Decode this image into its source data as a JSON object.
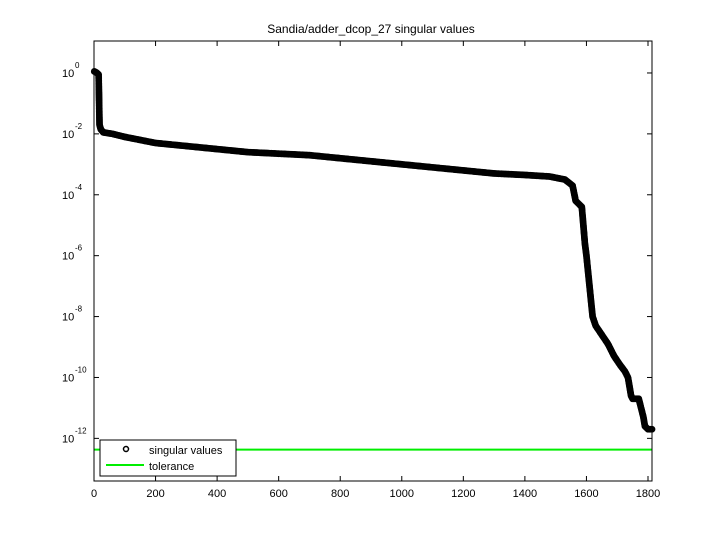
{
  "chart_data": {
    "type": "scatter",
    "title": "Sandia/adder_dcop_27 singular values",
    "xlabel": "",
    "ylabel": "",
    "xlim": [
      0,
      1813
    ],
    "ylim_log10": [
      1.05,
      -13.4
    ],
    "yscale": "log",
    "x_ticks": [
      0,
      200,
      400,
      600,
      800,
      1000,
      1200,
      1400,
      1600,
      1800
    ],
    "y_ticks_exponent": [
      0,
      -2,
      -4,
      -6,
      -8,
      -10,
      -12
    ],
    "grid": false,
    "legend_position": "lower left",
    "legend": [
      "singular values",
      "tolerance"
    ],
    "series": [
      {
        "name": "singular values",
        "marker": "circle",
        "color": "#000000",
        "points_log10": [
          [
            1,
            0.05
          ],
          [
            5,
            0.03
          ],
          [
            10,
            0.0
          ],
          [
            15,
            -0.05
          ],
          [
            18,
            -1.7
          ],
          [
            22,
            -1.85
          ],
          [
            30,
            -1.95
          ],
          [
            60,
            -2.0
          ],
          [
            100,
            -2.1
          ],
          [
            150,
            -2.2
          ],
          [
            200,
            -2.3
          ],
          [
            300,
            -2.4
          ],
          [
            400,
            -2.5
          ],
          [
            500,
            -2.6
          ],
          [
            600,
            -2.65
          ],
          [
            700,
            -2.7
          ],
          [
            800,
            -2.8
          ],
          [
            900,
            -2.9
          ],
          [
            1000,
            -3.0
          ],
          [
            1100,
            -3.1
          ],
          [
            1200,
            -3.2
          ],
          [
            1300,
            -3.3
          ],
          [
            1400,
            -3.35
          ],
          [
            1480,
            -3.4
          ],
          [
            1530,
            -3.5
          ],
          [
            1555,
            -3.7
          ],
          [
            1565,
            -4.2
          ],
          [
            1575,
            -4.3
          ],
          [
            1585,
            -4.4
          ],
          [
            1590,
            -5.0
          ],
          [
            1595,
            -5.6
          ],
          [
            1600,
            -6.0
          ],
          [
            1605,
            -6.5
          ],
          [
            1610,
            -7.0
          ],
          [
            1615,
            -7.5
          ],
          [
            1620,
            -8.0
          ],
          [
            1630,
            -8.3
          ],
          [
            1650,
            -8.6
          ],
          [
            1670,
            -8.9
          ],
          [
            1690,
            -9.3
          ],
          [
            1710,
            -9.6
          ],
          [
            1725,
            -9.8
          ],
          [
            1735,
            -10.0
          ],
          [
            1740,
            -10.3
          ],
          [
            1745,
            -10.6
          ],
          [
            1750,
            -10.7
          ],
          [
            1770,
            -10.7
          ],
          [
            1775,
            -10.9
          ],
          [
            1785,
            -11.3
          ],
          [
            1790,
            -11.6
          ],
          [
            1800,
            -11.7
          ],
          [
            1813,
            -11.7
          ]
        ]
      },
      {
        "name": "tolerance",
        "color": "#00ee00",
        "value_log10": -12.37
      }
    ]
  },
  "axes": {
    "x_tick_labels": [
      "0",
      "200",
      "400",
      "600",
      "800",
      "1000",
      "1200",
      "1400",
      "1600",
      "1800"
    ],
    "y_tick_mantissa": "10",
    "y_tick_exponents": [
      "0",
      "-2",
      "-4",
      "-6",
      "-8",
      "-10",
      "-12"
    ]
  },
  "legend": {
    "items": [
      {
        "label": "singular values"
      },
      {
        "label": "tolerance"
      }
    ]
  }
}
